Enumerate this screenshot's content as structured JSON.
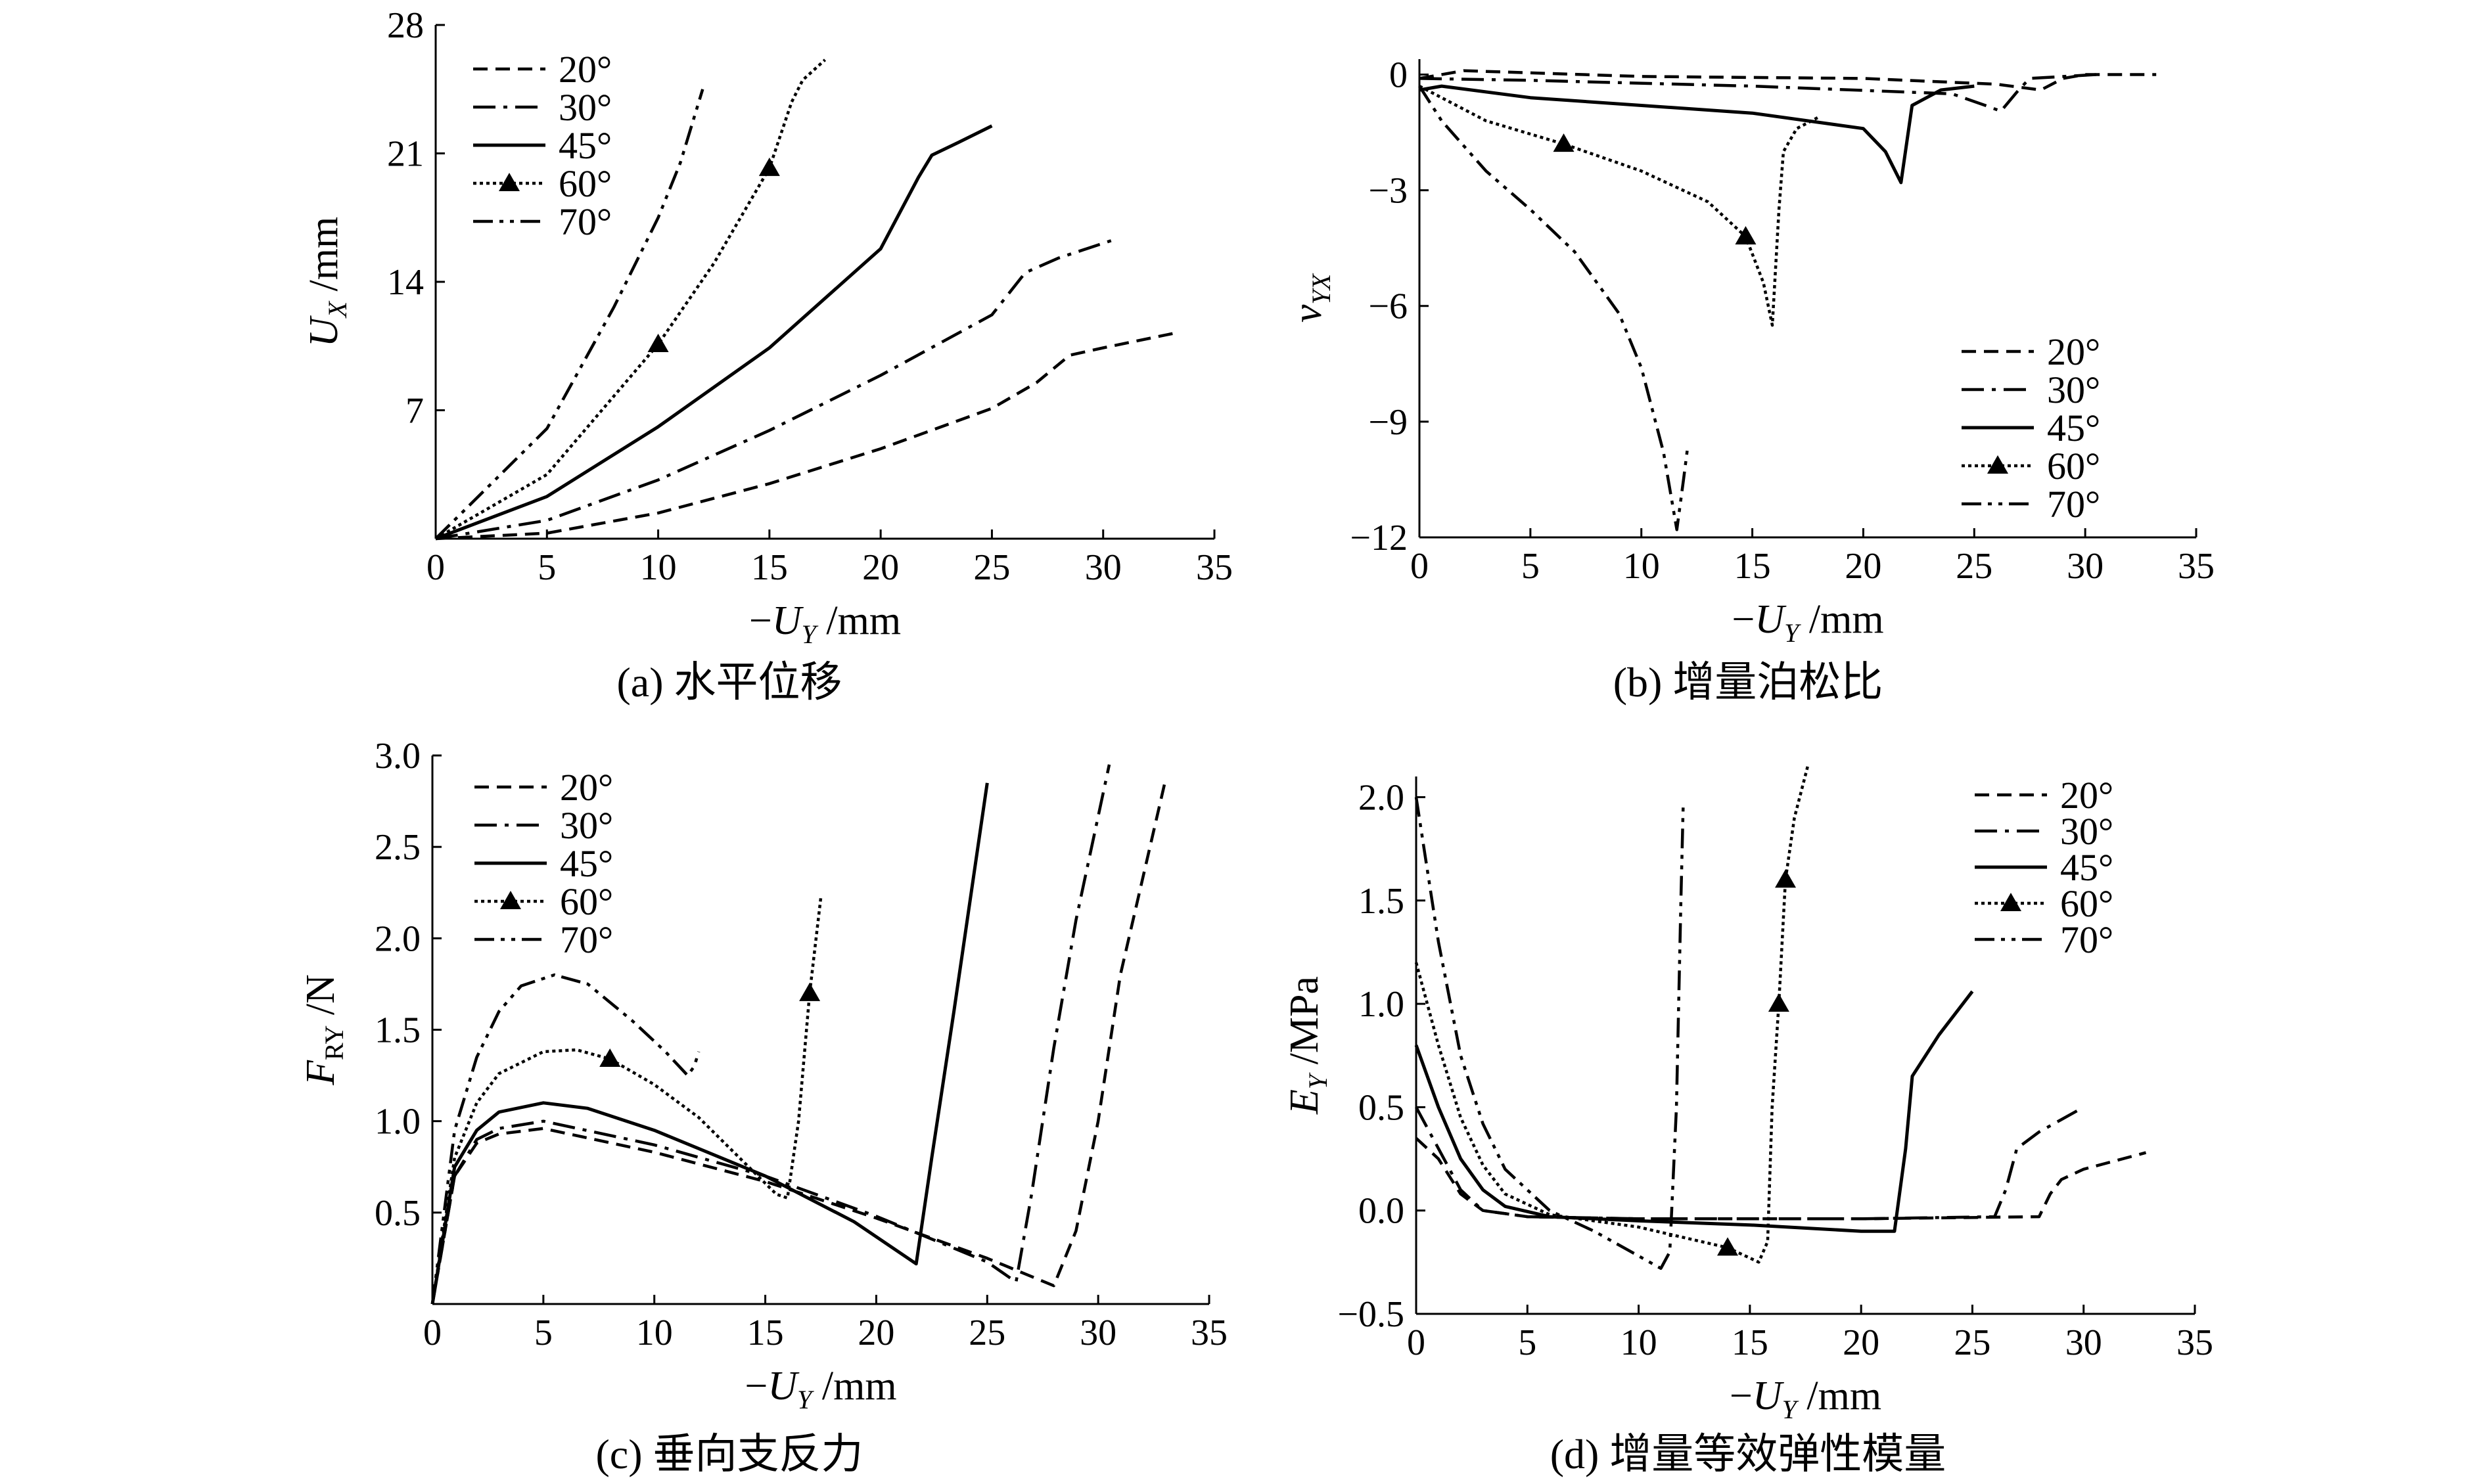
{
  "figure": {
    "panels": [
      {
        "id": "a",
        "caption": "(a) 水平位移"
      },
      {
        "id": "b",
        "caption": "(b) 增量泊松比"
      },
      {
        "id": "c",
        "caption": "(c) 垂向支反力"
      },
      {
        "id": "d",
        "caption": "(d) 增量等效弹性模量"
      }
    ]
  },
  "chart_data": [
    {
      "id": "a",
      "type": "line",
      "title": "(a) 水平位移",
      "xlabel": "−U_Y /mm",
      "ylabel": "U_X /mm",
      "xlim": [
        0,
        35
      ],
      "ylim": [
        0,
        28
      ],
      "xticks": [
        0,
        5,
        10,
        15,
        20,
        25,
        30,
        35
      ],
      "yticks": [
        7,
        14,
        21,
        28
      ],
      "grid": false,
      "legend": "top-left",
      "series": [
        {
          "name": "20°",
          "style": "dash",
          "x": [
            0,
            5,
            10,
            15,
            20,
            25,
            27,
            28.5,
            30,
            33.2
          ],
          "y": [
            0,
            0.3,
            1.4,
            3.0,
            4.9,
            7.1,
            8.5,
            10.0,
            10.4,
            11.2
          ]
        },
        {
          "name": "30°",
          "style": "dashdot",
          "x": [
            0,
            5,
            10,
            15,
            20,
            25,
            26.5,
            28,
            30.5
          ],
          "y": [
            0,
            1.0,
            3.2,
            5.9,
            8.9,
            12.2,
            14.5,
            15.3,
            16.3
          ]
        },
        {
          "name": "45°",
          "style": "solid",
          "x": [
            0,
            5,
            10,
            15,
            20,
            21.7,
            22.3,
            23.5,
            25
          ],
          "y": [
            0,
            2.3,
            6.1,
            10.4,
            15.8,
            19.7,
            20.9,
            21.6,
            22.5
          ]
        },
        {
          "name": "60°",
          "style": "dotmarker",
          "x": [
            0,
            5,
            10,
            12.5,
            15,
            16,
            16.5,
            17.5
          ],
          "y": [
            0,
            3.5,
            10.6,
            15.0,
            20.2,
            23.8,
            25.0,
            26.1
          ]
        },
        {
          "name": "70°",
          "style": "dashdotdot",
          "x": [
            0,
            5,
            8,
            10,
            11,
            12
          ],
          "y": [
            0,
            6.0,
            12.6,
            17.5,
            20.5,
            24.5
          ]
        }
      ]
    },
    {
      "id": "b",
      "type": "line",
      "title": "(b) 增量泊松比",
      "xlabel": "−U_Y /mm",
      "ylabel": "ν_YX",
      "xlim": [
        0,
        35
      ],
      "ylim": [
        -12,
        0.4
      ],
      "xticks": [
        0,
        5,
        10,
        15,
        20,
        25,
        30,
        35
      ],
      "yticks": [
        0,
        -3,
        -6,
        -9,
        -12
      ],
      "grid": false,
      "legend": "bottom-right",
      "series": [
        {
          "name": "20°",
          "style": "dash",
          "x": [
            0,
            2,
            10,
            20,
            26,
            28,
            29,
            30,
            33.2
          ],
          "y": [
            -0.1,
            0.1,
            -0.05,
            -0.1,
            -0.25,
            -0.4,
            -0.1,
            0,
            0
          ]
        },
        {
          "name": "30°",
          "style": "dashdot",
          "x": [
            0,
            5,
            15,
            24,
            25.5,
            26.2,
            27,
            27.5,
            30.5
          ],
          "y": [
            -0.1,
            -0.15,
            -0.3,
            -0.5,
            -0.8,
            -0.95,
            -0.4,
            -0.1,
            0
          ]
        },
        {
          "name": "45°",
          "style": "solid",
          "x": [
            0,
            1,
            5,
            10,
            15,
            20,
            21,
            21.7,
            22.2,
            23.5,
            25
          ],
          "y": [
            -0.4,
            -0.3,
            -0.6,
            -0.8,
            -1.0,
            -1.4,
            -2.0,
            -2.8,
            -0.8,
            -0.4,
            -0.3
          ]
        },
        {
          "name": "60°",
          "style": "dotmarker",
          "x": [
            0,
            3,
            6.5,
            10,
            13,
            14.7,
            15.5,
            15.9,
            16.2,
            16.4,
            17,
            18
          ],
          "y": [
            -0.3,
            -1.2,
            -1.8,
            -2.5,
            -3.3,
            -4.2,
            -5.4,
            -6.5,
            -3.5,
            -2.0,
            -1.4,
            -1.1
          ]
        },
        {
          "name": "70°",
          "style": "dashdotdot",
          "x": [
            0,
            1,
            3,
            5,
            7,
            9,
            10,
            11,
            11.6,
            11.9,
            12.1
          ],
          "y": [
            -0.3,
            -1.2,
            -2.5,
            -3.5,
            -4.6,
            -6.2,
            -7.6,
            -9.8,
            -11.8,
            -10.5,
            -9.6
          ]
        }
      ]
    },
    {
      "id": "c",
      "type": "line",
      "title": "(c) 垂向支反力",
      "xlabel": "−U_Y /mm",
      "ylabel": "F_RY /N",
      "xlim": [
        0,
        35
      ],
      "ylim": [
        0,
        3.0
      ],
      "xticks": [
        0,
        5,
        10,
        15,
        20,
        25,
        30,
        35
      ],
      "yticks": [
        0.5,
        1.0,
        1.5,
        2.0,
        2.5,
        3.0
      ],
      "grid": false,
      "legend": "top-left",
      "series": [
        {
          "name": "20°",
          "style": "dash",
          "x": [
            0,
            1,
            2,
            3,
            5,
            10,
            15,
            20,
            25,
            28,
            29,
            30,
            31,
            33
          ],
          "y": [
            0,
            0.7,
            0.88,
            0.93,
            0.96,
            0.83,
            0.67,
            0.47,
            0.25,
            0.1,
            0.4,
            1.0,
            1.8,
            2.85
          ]
        },
        {
          "name": "30°",
          "style": "dashdot",
          "x": [
            0,
            1,
            2,
            3,
            5,
            10,
            15,
            20,
            25,
            26.3,
            27,
            28,
            29,
            30.5
          ],
          "y": [
            0,
            0.7,
            0.9,
            0.96,
            1.0,
            0.87,
            0.7,
            0.48,
            0.23,
            0.12,
            0.6,
            1.4,
            2.1,
            2.95
          ]
        },
        {
          "name": "45°",
          "style": "solid",
          "x": [
            0,
            1,
            2,
            3,
            5,
            7,
            10,
            15,
            19,
            21.8,
            22.5,
            23.5,
            25
          ],
          "y": [
            0,
            0.75,
            0.95,
            1.05,
            1.1,
            1.07,
            0.95,
            0.7,
            0.45,
            0.22,
            0.8,
            1.6,
            2.85
          ]
        },
        {
          "name": "60°",
          "style": "dotmarker",
          "x": [
            0,
            1,
            2,
            3,
            5,
            6.5,
            8,
            10,
            12,
            14,
            15.5,
            16,
            16.5,
            17,
            17.5
          ],
          "y": [
            0,
            0.8,
            1.1,
            1.26,
            1.38,
            1.39,
            1.34,
            1.2,
            1.02,
            0.78,
            0.6,
            0.58,
            1.0,
            1.7,
            2.22
          ]
        },
        {
          "name": "70°",
          "style": "dashdotdot",
          "x": [
            0,
            1,
            2,
            3,
            4,
            5.5,
            7,
            9,
            10.5,
            11.5,
            11.8,
            12
          ],
          "y": [
            0,
            0.95,
            1.35,
            1.6,
            1.74,
            1.8,
            1.75,
            1.55,
            1.38,
            1.25,
            1.3,
            1.38
          ]
        }
      ]
    },
    {
      "id": "d",
      "type": "line",
      "title": "(d) 增量等效弹性模量",
      "xlabel": "−U_Y /mm",
      "ylabel": "E_Y /MPa",
      "xlim": [
        0,
        35
      ],
      "ylim": [
        -0.5,
        2.1
      ],
      "xticks": [
        0,
        5,
        10,
        15,
        20,
        25,
        30,
        35
      ],
      "yticks": [
        -0.5,
        0.0,
        0.5,
        1.0,
        1.5,
        2.0
      ],
      "grid": false,
      "legend": "top-right",
      "series": [
        {
          "name": "20°",
          "style": "dash",
          "x": [
            0,
            1,
            2,
            3,
            5,
            10,
            20,
            28,
            28.5,
            29,
            30,
            32.8
          ],
          "y": [
            0.35,
            0.25,
            0.08,
            0.0,
            -0.03,
            -0.04,
            -0.04,
            -0.03,
            0.08,
            0.15,
            0.2,
            0.28
          ]
        },
        {
          "name": "30°",
          "style": "dashdot",
          "x": [
            0,
            1,
            2,
            3,
            5,
            10,
            20,
            26,
            26.5,
            27,
            28,
            30
          ],
          "y": [
            0.5,
            0.3,
            0.1,
            0.0,
            -0.03,
            -0.04,
            -0.04,
            -0.03,
            0.1,
            0.3,
            0.38,
            0.5
          ]
        },
        {
          "name": "45°",
          "style": "solid",
          "x": [
            0,
            1,
            2,
            3,
            4,
            6,
            10,
            15,
            20,
            21.5,
            22,
            22.3,
            23.5,
            25
          ],
          "y": [
            0.8,
            0.5,
            0.25,
            0.1,
            0.02,
            -0.03,
            -0.05,
            -0.07,
            -0.1,
            -0.1,
            0.3,
            0.65,
            0.85,
            1.06
          ]
        },
        {
          "name": "60°",
          "style": "dotmarker",
          "x": [
            0,
            1,
            2,
            3,
            4,
            6,
            10,
            14,
            15.4,
            15.8,
            16,
            16.3,
            16.6,
            17,
            17.6
          ],
          "y": [
            1.2,
            0.8,
            0.45,
            0.22,
            0.08,
            -0.02,
            -0.08,
            -0.18,
            -0.25,
            -0.15,
            0.5,
            1.0,
            1.6,
            1.9,
            2.15
          ]
        },
        {
          "name": "70°",
          "style": "dashdotdot",
          "x": [
            0,
            0.5,
            1,
            2,
            3,
            4,
            6,
            8,
            10,
            11,
            11.4,
            11.7,
            11.9,
            12
          ],
          "y": [
            2.0,
            1.65,
            1.3,
            0.75,
            0.42,
            0.2,
            0.0,
            -0.1,
            -0.22,
            -0.28,
            -0.2,
            0.5,
            1.5,
            1.95
          ]
        }
      ]
    }
  ]
}
